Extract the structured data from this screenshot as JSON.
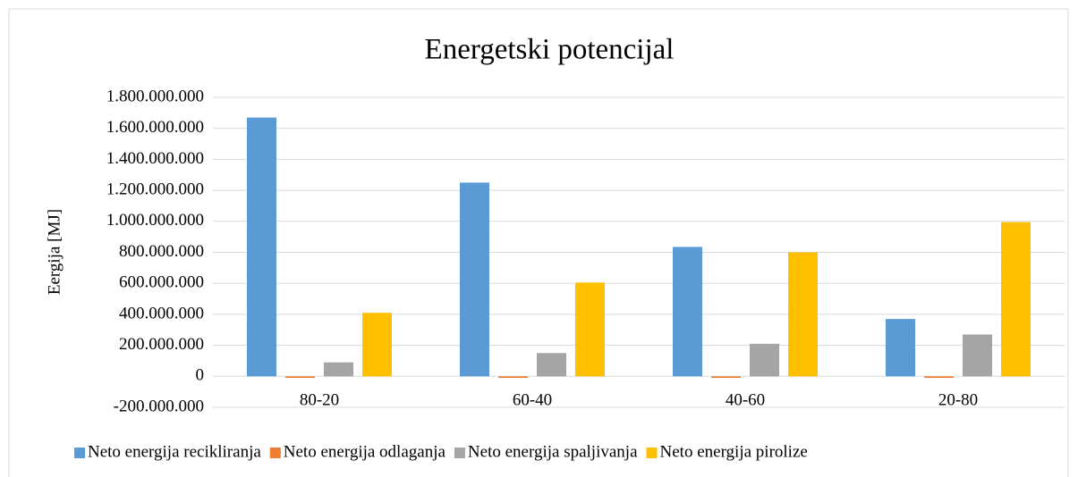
{
  "chart_data": {
    "type": "bar",
    "title": "Energetski potencijal",
    "y_label": "Eergija [MJ]",
    "categories": [
      "80-20",
      "60-40",
      "40-60",
      "20-80"
    ],
    "series": [
      {
        "name": "Neto energija recikliranja",
        "color": "#5b9bd5",
        "values": [
          1670000000,
          1250000000,
          835000000,
          370000000
        ]
      },
      {
        "name": "Neto energija odlaganja",
        "color": "#ed7d31",
        "values": [
          -10000000,
          -10000000,
          -10000000,
          -10000000
        ]
      },
      {
        "name": "Neto energija spaljivanja",
        "color": "#a5a5a5",
        "values": [
          90000000,
          150000000,
          210000000,
          270000000
        ]
      },
      {
        "name": "Neto energija pirolize",
        "color": "#ffc000",
        "values": [
          410000000,
          605000000,
          800000000,
          995000000
        ]
      }
    ],
    "ylim": [
      -200000000,
      1800000000
    ],
    "yticks": [
      {
        "value": -200000000,
        "label": "-200.000.000"
      },
      0,
      {
        "value": 200000000,
        "label": "200.000.000"
      },
      {
        "value": 400000000,
        "label": "400.000.000"
      },
      {
        "value": 600000000,
        "label": "600.000.000"
      },
      {
        "value": 800000000,
        "label": "800.000.000"
      },
      {
        "value": 1000000000,
        "label": "1.000.000.000"
      },
      {
        "value": 1200000000,
        "label": "1.200.000.000"
      },
      {
        "value": 1400000000,
        "label": "1.400.000.000"
      },
      {
        "value": 1600000000,
        "label": "1.600.000.000"
      },
      {
        "value": 1800000000,
        "label": "1.800.000.000"
      }
    ],
    "grid": true,
    "legend": "bottom"
  }
}
